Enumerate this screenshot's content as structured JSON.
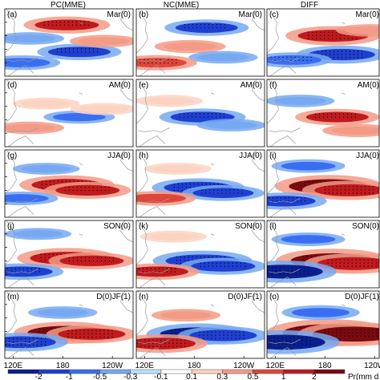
{
  "figure": {
    "columns": [
      {
        "title": "PC(MME)"
      },
      {
        "title": "NC(MME)"
      },
      {
        "title": "DIFF"
      }
    ],
    "rows": [
      {
        "season": "Mar(0)"
      },
      {
        "season": "AM(0)"
      },
      {
        "season": "JJA(0)"
      },
      {
        "season": "SON(0)"
      },
      {
        "season": "D(0)JF(1)"
      }
    ],
    "panel_letters": [
      "(a)",
      "(b)",
      "(c)",
      "(d)",
      "(e)",
      "(f)",
      "(g)",
      "(h)",
      "(i)",
      "(j)",
      "(k)",
      "(l)",
      "(m)",
      "(n)",
      "(o)"
    ],
    "x_tick_labels": [
      "120E",
      "180",
      "120W"
    ],
    "colorbar": {
      "title": "Pr(mm d",
      "tick_labels": [
        "-2",
        "-1",
        "-0.5",
        "-0.3",
        "-0.1",
        "0.1",
        "0.3",
        "0.5",
        "1",
        "2"
      ],
      "colors": [
        "#0a1f8f",
        "#1f3fd1",
        "#3a6ef2",
        "#77a9f2",
        "#bde0f7",
        "#ffffff",
        "#fbd3c2",
        "#f39b86",
        "#e0453b",
        "#c11a1f",
        "#7a0a10"
      ]
    }
  },
  "chart_data": {
    "type": "heatmap",
    "variable": "Pr(mm d",
    "levels": [
      -2,
      -1,
      -0.5,
      -0.3,
      -0.1,
      0.1,
      0.3,
      0.5,
      1,
      2
    ],
    "x_ticks": [
      "120E",
      "180",
      "120W"
    ],
    "panels": [
      {
        "id": "a",
        "column": "PC(MME)",
        "season": "Mar(0)",
        "anomalies": [
          {
            "lon": 185,
            "lat": 18,
            "value": 1.2
          },
          {
            "lon": 200,
            "lat": -2,
            "value": -1.1
          },
          {
            "lon": 140,
            "lat": 8,
            "value": -0.4
          },
          {
            "lon": 230,
            "lat": 6,
            "value": 0.4
          },
          {
            "lon": 130,
            "lat": -10,
            "value": -0.8
          }
        ]
      },
      {
        "id": "b",
        "column": "NC(MME)",
        "season": "Mar(0)",
        "anomalies": [
          {
            "lon": 195,
            "lat": 16,
            "value": -1.1
          },
          {
            "lon": 175,
            "lat": 2,
            "value": 0.5
          },
          {
            "lon": 215,
            "lat": -6,
            "value": -0.4
          },
          {
            "lon": 135,
            "lat": -10,
            "value": 0.9
          }
        ]
      },
      {
        "id": "c",
        "column": "DIFF",
        "season": "Mar(0)",
        "anomalies": [
          {
            "lon": 190,
            "lat": 10,
            "value": 1.6
          },
          {
            "lon": 200,
            "lat": -4,
            "value": -1.4
          },
          {
            "lon": 140,
            "lat": -8,
            "value": -0.9
          },
          {
            "lon": 235,
            "lat": 14,
            "value": 0.4
          }
        ]
      },
      {
        "id": "d",
        "column": "PC(MME)",
        "season": "AM(0)",
        "anomalies": [
          {
            "lon": 160,
            "lat": 12,
            "value": 0.3
          },
          {
            "lon": 200,
            "lat": 2,
            "value": -0.5
          },
          {
            "lon": 140,
            "lat": -6,
            "value": 0.4
          },
          {
            "lon": 230,
            "lat": 8,
            "value": 0.3
          }
        ]
      },
      {
        "id": "e",
        "column": "NC(MME)",
        "season": "AM(0)",
        "anomalies": [
          {
            "lon": 190,
            "lat": 2,
            "value": -1.2
          },
          {
            "lon": 150,
            "lat": 14,
            "value": 0.3
          },
          {
            "lon": 225,
            "lat": -4,
            "value": -0.4
          }
        ]
      },
      {
        "id": "f",
        "column": "DIFF",
        "season": "AM(0)",
        "anomalies": [
          {
            "lon": 195,
            "lat": 2,
            "value": 1.1
          },
          {
            "lon": 150,
            "lat": 14,
            "value": -0.4
          },
          {
            "lon": 220,
            "lat": -8,
            "value": 0.5
          }
        ]
      },
      {
        "id": "g",
        "column": "PC(MME)",
        "season": "JJA(0)",
        "anomalies": [
          {
            "lon": 185,
            "lat": 4,
            "value": 1.6
          },
          {
            "lon": 210,
            "lat": 0,
            "value": 1.2
          },
          {
            "lon": 130,
            "lat": -6,
            "value": -0.6
          },
          {
            "lon": 160,
            "lat": 16,
            "value": -0.3
          }
        ]
      },
      {
        "id": "h",
        "column": "NC(MME)",
        "season": "JJA(0)",
        "anomalies": [
          {
            "lon": 185,
            "lat": 2,
            "value": -1.5
          },
          {
            "lon": 215,
            "lat": -2,
            "value": -1.0
          },
          {
            "lon": 135,
            "lat": -6,
            "value": 0.8
          },
          {
            "lon": 160,
            "lat": 16,
            "value": 0.3
          }
        ]
      },
      {
        "id": "i",
        "column": "DIFF",
        "season": "JJA(0)",
        "anomalies": [
          {
            "lon": 185,
            "lat": 3,
            "value": 2.2
          },
          {
            "lon": 210,
            "lat": 0,
            "value": 1.6
          },
          {
            "lon": 130,
            "lat": -8,
            "value": -1.2
          },
          {
            "lon": 160,
            "lat": 18,
            "value": -0.6
          }
        ]
      },
      {
        "id": "j",
        "column": "PC(MME)",
        "season": "SON(0)",
        "anomalies": [
          {
            "lon": 185,
            "lat": 2,
            "value": 1.8
          },
          {
            "lon": 215,
            "lat": 0,
            "value": 1.2
          },
          {
            "lon": 130,
            "lat": -8,
            "value": -1.1
          },
          {
            "lon": 150,
            "lat": 20,
            "value": -0.3
          }
        ]
      },
      {
        "id": "k",
        "column": "NC(MME)",
        "season": "SON(0)",
        "anomalies": [
          {
            "lon": 190,
            "lat": 0,
            "value": -1.8
          },
          {
            "lon": 215,
            "lat": -4,
            "value": -1.2
          },
          {
            "lon": 135,
            "lat": -8,
            "value": 1.1
          },
          {
            "lon": 155,
            "lat": 18,
            "value": 0.3
          }
        ]
      },
      {
        "id": "l",
        "column": "DIFF",
        "season": "SON(0)",
        "anomalies": [
          {
            "lon": 190,
            "lat": 0,
            "value": 2.5
          },
          {
            "lon": 215,
            "lat": -2,
            "value": 1.8
          },
          {
            "lon": 130,
            "lat": -8,
            "value": -2.1
          },
          {
            "lon": 160,
            "lat": 16,
            "value": -0.6
          }
        ]
      },
      {
        "id": "m",
        "column": "PC(MME)",
        "season": "D(0)JF(1)",
        "anomalies": [
          {
            "lon": 185,
            "lat": -1,
            "value": 2.1
          },
          {
            "lon": 215,
            "lat": -2,
            "value": 1.4
          },
          {
            "lon": 130,
            "lat": -8,
            "value": -1.5
          },
          {
            "lon": 180,
            "lat": 14,
            "value": -0.4
          }
        ]
      },
      {
        "id": "n",
        "column": "NC(MME)",
        "season": "D(0)JF(1)",
        "anomalies": [
          {
            "lon": 185,
            "lat": -2,
            "value": -2.0
          },
          {
            "lon": 215,
            "lat": -3,
            "value": -1.4
          },
          {
            "lon": 140,
            "lat": -9,
            "value": 1.5
          },
          {
            "lon": 170,
            "lat": 12,
            "value": 0.4
          }
        ]
      },
      {
        "id": "o",
        "column": "DIFF",
        "season": "D(0)JF(1)",
        "anomalies": [
          {
            "lon": 185,
            "lat": -1,
            "value": 3.2
          },
          {
            "lon": 215,
            "lat": -2,
            "value": 2.4
          },
          {
            "lon": 130,
            "lat": -8,
            "value": -2.4
          },
          {
            "lon": 175,
            "lat": 14,
            "value": -0.8
          }
        ]
      }
    ]
  }
}
